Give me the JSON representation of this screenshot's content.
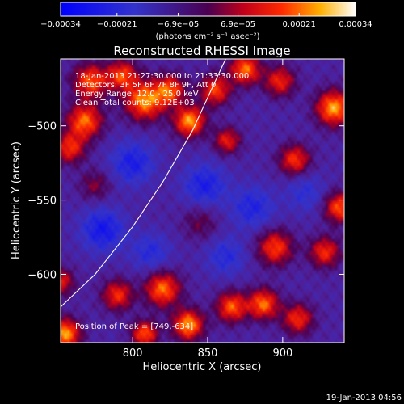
{
  "chart_data": {
    "type": "heatmap",
    "title": "Reconstructed RHESSI Image",
    "xlabel": "Heliocentric X (arcsec)",
    "ylabel": "Heliocentric Y (arcsec)",
    "xlim": [
      752,
      941
    ],
    "ylim": [
      -646,
      -455
    ],
    "x_ticks": [
      800,
      850,
      900
    ],
    "x_tick_labels": [
      "800",
      "850",
      "900"
    ],
    "y_ticks": [
      -500,
      -550,
      -600
    ],
    "y_tick_labels": [
      "−500",
      "−550",
      "−600"
    ],
    "colorbar": {
      "range": [
        -0.00034,
        0.00034
      ],
      "unit_label": "(photons cm⁻² s⁻¹ asec⁻²)",
      "bottom_tick_labels": [
        "−0.00034",
        "−0.00021",
        "0.00021",
        "0.00034"
      ],
      "bottom_tick_values": [
        -0.00034,
        -0.00021,
        0.00021,
        0.00034
      ],
      "top_tick_labels": [
        "−6.9e−05",
        "6.9e−05"
      ],
      "top_tick_values": [
        -6.9e-05,
        6.9e-05
      ]
    },
    "annotations": [
      "18-Jan-2013 21:27:30.000 to 21:33:30.000",
      "Detectors: 3F 5F 6F 7F 8F 9F, Att 0",
      "Energy Range: 12.0 - 25.0 keV",
      "Clean     Total counts: 9.12E+03"
    ],
    "peak_label": "Position of Peak = [749,-634]",
    "limb_curve": [
      [
        752,
        -622
      ],
      [
        775,
        -600
      ],
      [
        800,
        -568
      ],
      [
        820,
        -538
      ],
      [
        840,
        -503
      ],
      [
        855,
        -470
      ],
      [
        862,
        -455
      ]
    ],
    "sources": [
      {
        "x": 768,
        "y": -497,
        "amp": 0.0003,
        "w": 8
      },
      {
        "x": 772,
        "y": -470,
        "amp": 0.00028,
        "w": 8
      },
      {
        "x": 758,
        "y": -515,
        "amp": 0.00024,
        "w": 7
      },
      {
        "x": 793,
        "y": -466,
        "amp": 0.00026,
        "w": 7
      },
      {
        "x": 808,
        "y": -483,
        "amp": 0.00033,
        "w": 9
      },
      {
        "x": 825,
        "y": -476,
        "amp": 0.00027,
        "w": 7
      },
      {
        "x": 838,
        "y": -497,
        "amp": 0.00034,
        "w": 7
      },
      {
        "x": 855,
        "y": -476,
        "amp": 0.00026,
        "w": 7
      },
      {
        "x": 863,
        "y": -510,
        "amp": 0.00022,
        "w": 6
      },
      {
        "x": 875,
        "y": -462,
        "amp": 0.0003,
        "w": 7
      },
      {
        "x": 898,
        "y": -470,
        "amp": 0.00023,
        "w": 7
      },
      {
        "x": 908,
        "y": -523,
        "amp": 0.00025,
        "w": 7
      },
      {
        "x": 934,
        "y": -488,
        "amp": 0.00034,
        "w": 8
      },
      {
        "x": 938,
        "y": -555,
        "amp": 0.00028,
        "w": 7
      },
      {
        "x": 928,
        "y": -585,
        "amp": 0.00024,
        "w": 7
      },
      {
        "x": 895,
        "y": -582,
        "amp": 0.00026,
        "w": 8
      },
      {
        "x": 887,
        "y": -620,
        "amp": 0.0003,
        "w": 7
      },
      {
        "x": 910,
        "y": -630,
        "amp": 0.00024,
        "w": 7
      },
      {
        "x": 866,
        "y": -622,
        "amp": 0.00028,
        "w": 7
      },
      {
        "x": 837,
        "y": -634,
        "amp": 0.00034,
        "w": 7
      },
      {
        "x": 820,
        "y": -610,
        "amp": 0.0003,
        "w": 8
      },
      {
        "x": 808,
        "y": -640,
        "amp": 0.00028,
        "w": 6
      },
      {
        "x": 790,
        "y": -614,
        "amp": 0.00024,
        "w": 7
      },
      {
        "x": 755,
        "y": -640,
        "amp": 0.00034,
        "w": 7
      },
      {
        "x": 752,
        "y": -605,
        "amp": 0.00022,
        "w": 6
      },
      {
        "x": 775,
        "y": -540,
        "amp": 0.00012,
        "w": 7
      },
      {
        "x": 845,
        "y": -565,
        "amp": 0.0001,
        "w": 8
      },
      {
        "x": 800,
        "y": -525,
        "amp": -0.00016,
        "w": 10
      },
      {
        "x": 780,
        "y": -570,
        "amp": -0.00018,
        "w": 10
      },
      {
        "x": 848,
        "y": -540,
        "amp": -0.00016,
        "w": 10
      },
      {
        "x": 880,
        "y": -555,
        "amp": -0.00014,
        "w": 10
      },
      {
        "x": 812,
        "y": -585,
        "amp": -0.00012,
        "w": 9
      },
      {
        "x": 862,
        "y": -588,
        "amp": -0.00012,
        "w": 9
      },
      {
        "x": 915,
        "y": -545,
        "amp": -0.0001,
        "w": 9
      }
    ]
  },
  "footer_timestamp": "19-Jan-2013 04:56"
}
